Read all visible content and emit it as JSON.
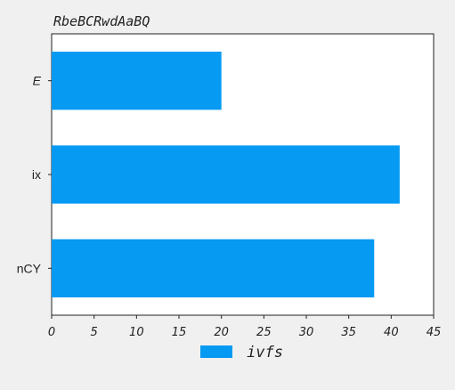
{
  "chart_data": {
    "type": "bar",
    "orientation": "horizontal",
    "title": "RbeBCRwdAaBQ",
    "categories": [
      "E",
      "ix",
      "nCY"
    ],
    "italic_categories": [
      "E"
    ],
    "series": [
      {
        "name": "ivfs",
        "values": [
          20,
          41,
          38
        ],
        "color": "#069af3"
      }
    ],
    "xlim": [
      0,
      45
    ],
    "xticks": [
      0,
      5,
      10,
      15,
      20,
      25,
      30,
      35,
      40,
      45
    ],
    "xlabel": "",
    "ylabel": "",
    "grid": false,
    "legend_position": "bottom-center"
  }
}
